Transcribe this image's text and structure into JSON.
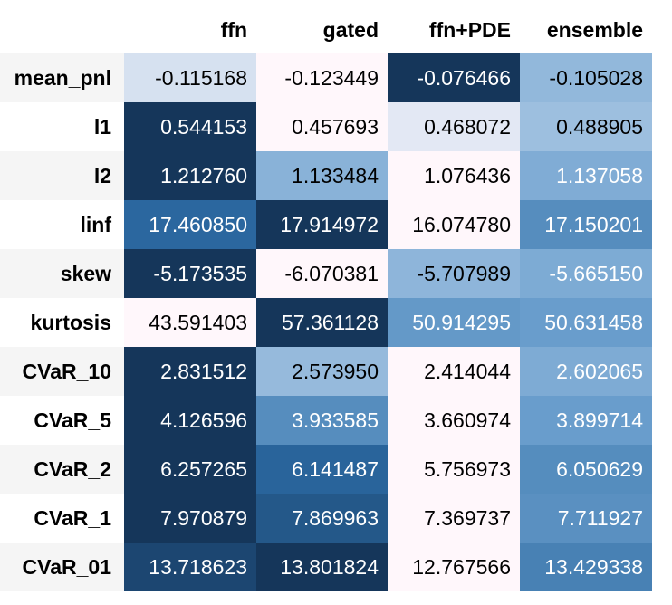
{
  "chart_data": {
    "type": "table",
    "title": "",
    "columns": [
      "ffn",
      "gated",
      "ffn+PDE",
      "ensemble"
    ],
    "rows": [
      "mean_pnl",
      "l1",
      "l2",
      "linf",
      "skew",
      "kurtosis",
      "CVaR_10",
      "CVaR_5",
      "CVaR_2",
      "CVaR_1",
      "CVaR_01"
    ],
    "values": [
      [
        "-0.115168",
        "-0.123449",
        "-0.076466",
        "-0.105028"
      ],
      [
        "0.544153",
        "0.457693",
        "0.468072",
        "0.488905"
      ],
      [
        "1.212760",
        "1.133484",
        "1.076436",
        "1.137058"
      ],
      [
        "17.460850",
        "17.914972",
        "16.074780",
        "17.150201"
      ],
      [
        "-5.173535",
        "-6.070381",
        "-5.707989",
        "-5.665150"
      ],
      [
        "43.591403",
        "57.361128",
        "50.914295",
        "50.631458"
      ],
      [
        "2.831512",
        "2.573950",
        "2.414044",
        "2.602065"
      ],
      [
        "4.126596",
        "3.933585",
        "3.660974",
        "3.899714"
      ],
      [
        "6.257265",
        "6.141487",
        "5.756973",
        "6.050629"
      ],
      [
        "7.970879",
        "7.869963",
        "7.369737",
        "7.711927"
      ],
      [
        "13.718623",
        "13.801824",
        "12.767566",
        "13.429338"
      ]
    ],
    "colormap": "Blues",
    "color_scale": "per-row",
    "colors": {
      "low": "#fff7fb",
      "high": "#15365a",
      "header_rule": "#c9c9c9",
      "row_stripe": "#f5f5f5"
    }
  }
}
